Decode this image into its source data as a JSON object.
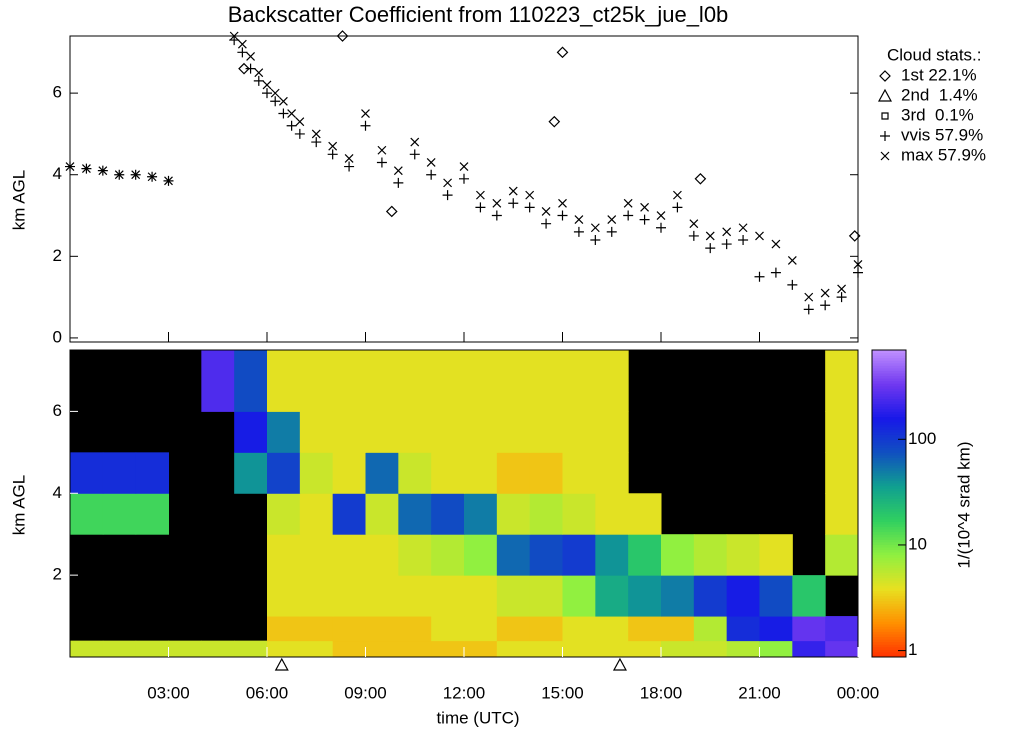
{
  "chart_data": [
    {
      "type": "scatter",
      "title": "Backscatter Coefficient from 110223_ct25k_jue_l0b",
      "ylabel": "km AGL",
      "xlim": [
        0,
        24
      ],
      "xticks": [
        3,
        6,
        9,
        12,
        15,
        18,
        21,
        24
      ],
      "ylim": [
        -0.1,
        7.4
      ],
      "yticks": [
        0,
        2,
        4,
        6
      ],
      "legend_title": "Cloud stats.:",
      "legend": [
        {
          "label": "1st 22.1%",
          "marker": "diamond"
        },
        {
          "label": "2nd  1.4%",
          "marker": "triangle"
        },
        {
          "label": "3rd  0.1%",
          "marker": "square"
        },
        {
          "label": "vvis 57.9%",
          "marker": "plus"
        },
        {
          "label": "max 57.9%",
          "marker": "cross"
        }
      ],
      "series": [
        {
          "name": "vvis",
          "marker": "plus",
          "color": "#000000",
          "x": [
            0,
            0.5,
            1,
            1.5,
            2,
            2.5,
            3,
            5,
            5.25,
            5.5,
            5.75,
            6,
            6.25,
            6.5,
            6.75,
            7,
            7.5,
            8,
            8.5,
            9,
            9.5,
            10,
            10.5,
            11,
            11.5,
            12,
            12.5,
            13,
            13.5,
            14,
            14.5,
            15,
            15.5,
            16,
            16.5,
            17,
            17.5,
            18,
            18.5,
            19,
            19.5,
            20,
            20.5,
            21,
            21.5,
            22,
            22.5,
            23,
            23.5,
            24
          ],
          "values": [
            4.2,
            4.15,
            4.1,
            4.0,
            4.0,
            3.95,
            3.85,
            7.3,
            7.0,
            6.6,
            6.3,
            6.0,
            5.8,
            5.5,
            5.2,
            5.0,
            4.8,
            4.5,
            4.2,
            5.2,
            4.3,
            3.8,
            4.5,
            4.0,
            3.5,
            3.9,
            3.2,
            3.0,
            3.3,
            3.2,
            2.8,
            3.0,
            2.6,
            2.4,
            2.6,
            3.0,
            2.9,
            2.7,
            3.2,
            2.5,
            2.2,
            2.3,
            2.4,
            1.5,
            1.6,
            1.3,
            0.7,
            0.8,
            1.0,
            1.6
          ]
        },
        {
          "name": "max",
          "marker": "cross",
          "color": "#000000",
          "x": [
            0,
            0.5,
            1,
            1.5,
            2,
            2.5,
            3,
            5,
            5.25,
            5.5,
            5.75,
            6,
            6.25,
            6.5,
            6.75,
            7,
            7.5,
            8,
            8.5,
            9,
            9.5,
            10,
            10.5,
            11,
            11.5,
            12,
            12.5,
            13,
            13.5,
            14,
            14.5,
            15,
            15.5,
            16,
            16.5,
            17,
            17.5,
            18,
            18.5,
            19,
            19.5,
            20,
            20.5,
            21,
            21.5,
            22,
            22.5,
            23,
            23.5,
            24
          ],
          "values": [
            4.2,
            4.15,
            4.1,
            4.0,
            4.0,
            3.95,
            3.85,
            7.4,
            7.2,
            6.9,
            6.5,
            6.2,
            6.0,
            5.8,
            5.5,
            5.3,
            5.0,
            4.7,
            4.4,
            5.5,
            4.6,
            4.1,
            4.8,
            4.3,
            3.8,
            4.2,
            3.5,
            3.3,
            3.6,
            3.5,
            3.1,
            3.3,
            2.9,
            2.7,
            2.9,
            3.3,
            3.2,
            3.0,
            3.5,
            2.8,
            2.5,
            2.6,
            2.7,
            2.5,
            2.3,
            1.9,
            1.0,
            1.1,
            1.2,
            1.8
          ]
        },
        {
          "name": "1st",
          "marker": "diamond",
          "color": "#000000",
          "x": [
            5.3,
            8.3,
            9.8,
            14.75,
            15.0,
            19.2,
            23.9
          ],
          "values": [
            6.6,
            7.4,
            3.1,
            5.3,
            7.0,
            3.9,
            2.5
          ]
        }
      ]
    },
    {
      "type": "heatmap",
      "xlabel": "time (UTC)",
      "ylabel": "km AGL",
      "xlim": [
        0,
        24
      ],
      "xticks": [
        {
          "value": 3,
          "label": "03:00"
        },
        {
          "value": 6,
          "label": "06:00"
        },
        {
          "value": 9,
          "label": "09:00"
        },
        {
          "value": 12,
          "label": "12:00"
        },
        {
          "value": 15,
          "label": "15:00"
        },
        {
          "value": 18,
          "label": "18:00"
        },
        {
          "value": 21,
          "label": "21:00"
        },
        {
          "value": 24,
          "label": "00:00"
        }
      ],
      "ylim": [
        0,
        7.5
      ],
      "yticks": [
        2,
        4,
        6
      ],
      "x_bins": [
        0,
        1,
        2,
        3,
        4,
        5,
        6,
        7,
        8,
        9,
        10,
        11,
        12,
        13,
        14,
        15,
        16,
        17,
        18,
        19,
        20,
        21,
        22,
        23,
        24
      ],
      "y_bins": [
        0,
        0.4,
        1,
        2,
        3,
        4,
        5,
        6,
        7.5
      ],
      "z": [
        [
          5,
          5,
          5,
          5,
          5,
          5,
          4,
          4,
          3,
          3,
          3,
          3,
          3,
          4,
          4,
          4,
          4,
          4,
          5,
          5,
          6,
          8,
          200,
          300
        ],
        [
          null,
          null,
          null,
          null,
          null,
          null,
          3,
          3,
          3,
          3,
          3,
          4,
          4,
          3,
          3,
          4,
          4,
          3,
          3,
          6,
          120,
          150,
          300,
          250
        ],
        [
          null,
          null,
          null,
          null,
          null,
          null,
          4,
          4,
          4,
          4,
          4,
          4,
          4,
          5,
          5,
          8,
          30,
          40,
          50,
          100,
          150,
          80,
          20,
          null
        ],
        [
          null,
          null,
          null,
          null,
          null,
          null,
          4,
          4,
          4,
          4,
          5,
          6,
          8,
          60,
          80,
          100,
          40,
          20,
          8,
          6,
          5,
          4,
          null,
          6
        ],
        [
          15,
          15,
          15,
          null,
          null,
          null,
          5,
          4,
          100,
          5,
          60,
          80,
          50,
          5,
          6,
          5,
          4,
          4,
          null,
          null,
          null,
          null,
          null,
          4
        ],
        [
          120,
          120,
          120,
          null,
          null,
          40,
          90,
          5,
          4,
          60,
          5,
          4,
          4,
          3,
          3,
          4,
          4,
          null,
          null,
          null,
          null,
          null,
          null,
          4
        ],
        [
          null,
          null,
          null,
          null,
          null,
          150,
          50,
          4,
          4,
          4,
          4,
          4,
          4,
          4,
          4,
          4,
          4,
          null,
          null,
          null,
          null,
          null,
          null,
          4
        ],
        [
          null,
          null,
          null,
          null,
          250,
          80,
          4,
          4,
          4,
          4,
          4,
          4,
          4,
          4,
          4,
          4,
          4,
          null,
          null,
          null,
          null,
          null,
          null,
          4
        ]
      ],
      "background": "#000000",
      "colormap": [
        "#ff3000",
        "#ff9000",
        "#e8e020",
        "#90f040",
        "#30d060",
        "#10a090",
        "#1050c0",
        "#1818e8",
        "#7038f0",
        "#c090ff"
      ],
      "clim": [
        0.87,
        700
      ],
      "log_color": true,
      "colorbar_label": "1/(10^4 srad km)",
      "colorbar_ticks": [
        1,
        10,
        100
      ],
      "markers_x": [
        6.45,
        16.75
      ]
    }
  ]
}
